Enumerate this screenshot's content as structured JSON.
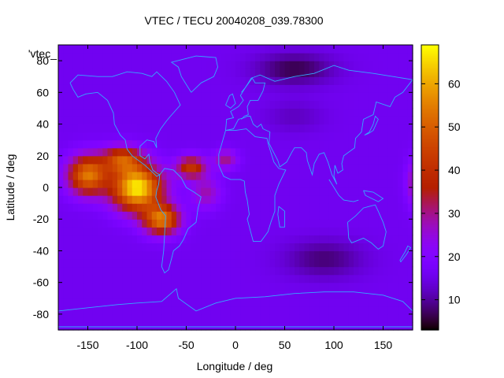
{
  "chart_data": {
    "type": "heatmap",
    "title": "VTEC / TECU 20040208_039.78300",
    "series_label": "'vtec_",
    "xlabel": "Longitude / deg",
    "ylabel": "Latitude / deg",
    "xlim": [
      -180,
      180
    ],
    "ylim": [
      -90,
      90
    ],
    "xticks": [
      -150,
      -100,
      -50,
      0,
      50,
      100,
      150
    ],
    "yticks": [
      -80,
      -60,
      -40,
      -20,
      0,
      20,
      40,
      60,
      80
    ],
    "colorbar": {
      "min": 3,
      "max": 69,
      "ticks": [
        10,
        20,
        30,
        40,
        50,
        60
      ]
    },
    "field": {
      "background_tecu": 16,
      "grid_step_deg": 5,
      "features": [
        {
          "lon": -100,
          "lat": 0,
          "amp": 52,
          "sigma_lon": 25,
          "sigma_lat": 14
        },
        {
          "lon": -150,
          "lat": 8,
          "amp": 38,
          "sigma_lon": 20,
          "sigma_lat": 12
        },
        {
          "lon": -115,
          "lat": 18,
          "amp": 28,
          "sigma_lon": 20,
          "sigma_lat": 8
        },
        {
          "lon": -75,
          "lat": -20,
          "amp": 38,
          "sigma_lon": 18,
          "sigma_lat": 9
        },
        {
          "lon": -45,
          "lat": 13,
          "amp": 25,
          "sigma_lon": 15,
          "sigma_lat": 7
        },
        {
          "lon": -10,
          "lat": 18,
          "amp": 14,
          "sigma_lon": 12,
          "sigma_lat": 6
        },
        {
          "lon": -30,
          "lat": -3,
          "amp": 12,
          "sigma_lon": 15,
          "sigma_lat": 10
        },
        {
          "lon": 185,
          "lat": 3,
          "amp": 18,
          "sigma_lon": 10,
          "sigma_lat": 14
        },
        {
          "lon": 90,
          "lat": -45,
          "amp": -8,
          "sigma_lon": 40,
          "sigma_lat": 12
        },
        {
          "lon": 60,
          "lat": 75,
          "amp": -10,
          "sigma_lon": 40,
          "sigma_lat": 10
        },
        {
          "lon": 60,
          "lat": 45,
          "amp": -4,
          "sigma_lon": 30,
          "sigma_lat": 10
        }
      ]
    },
    "overlay": "coastlines"
  }
}
